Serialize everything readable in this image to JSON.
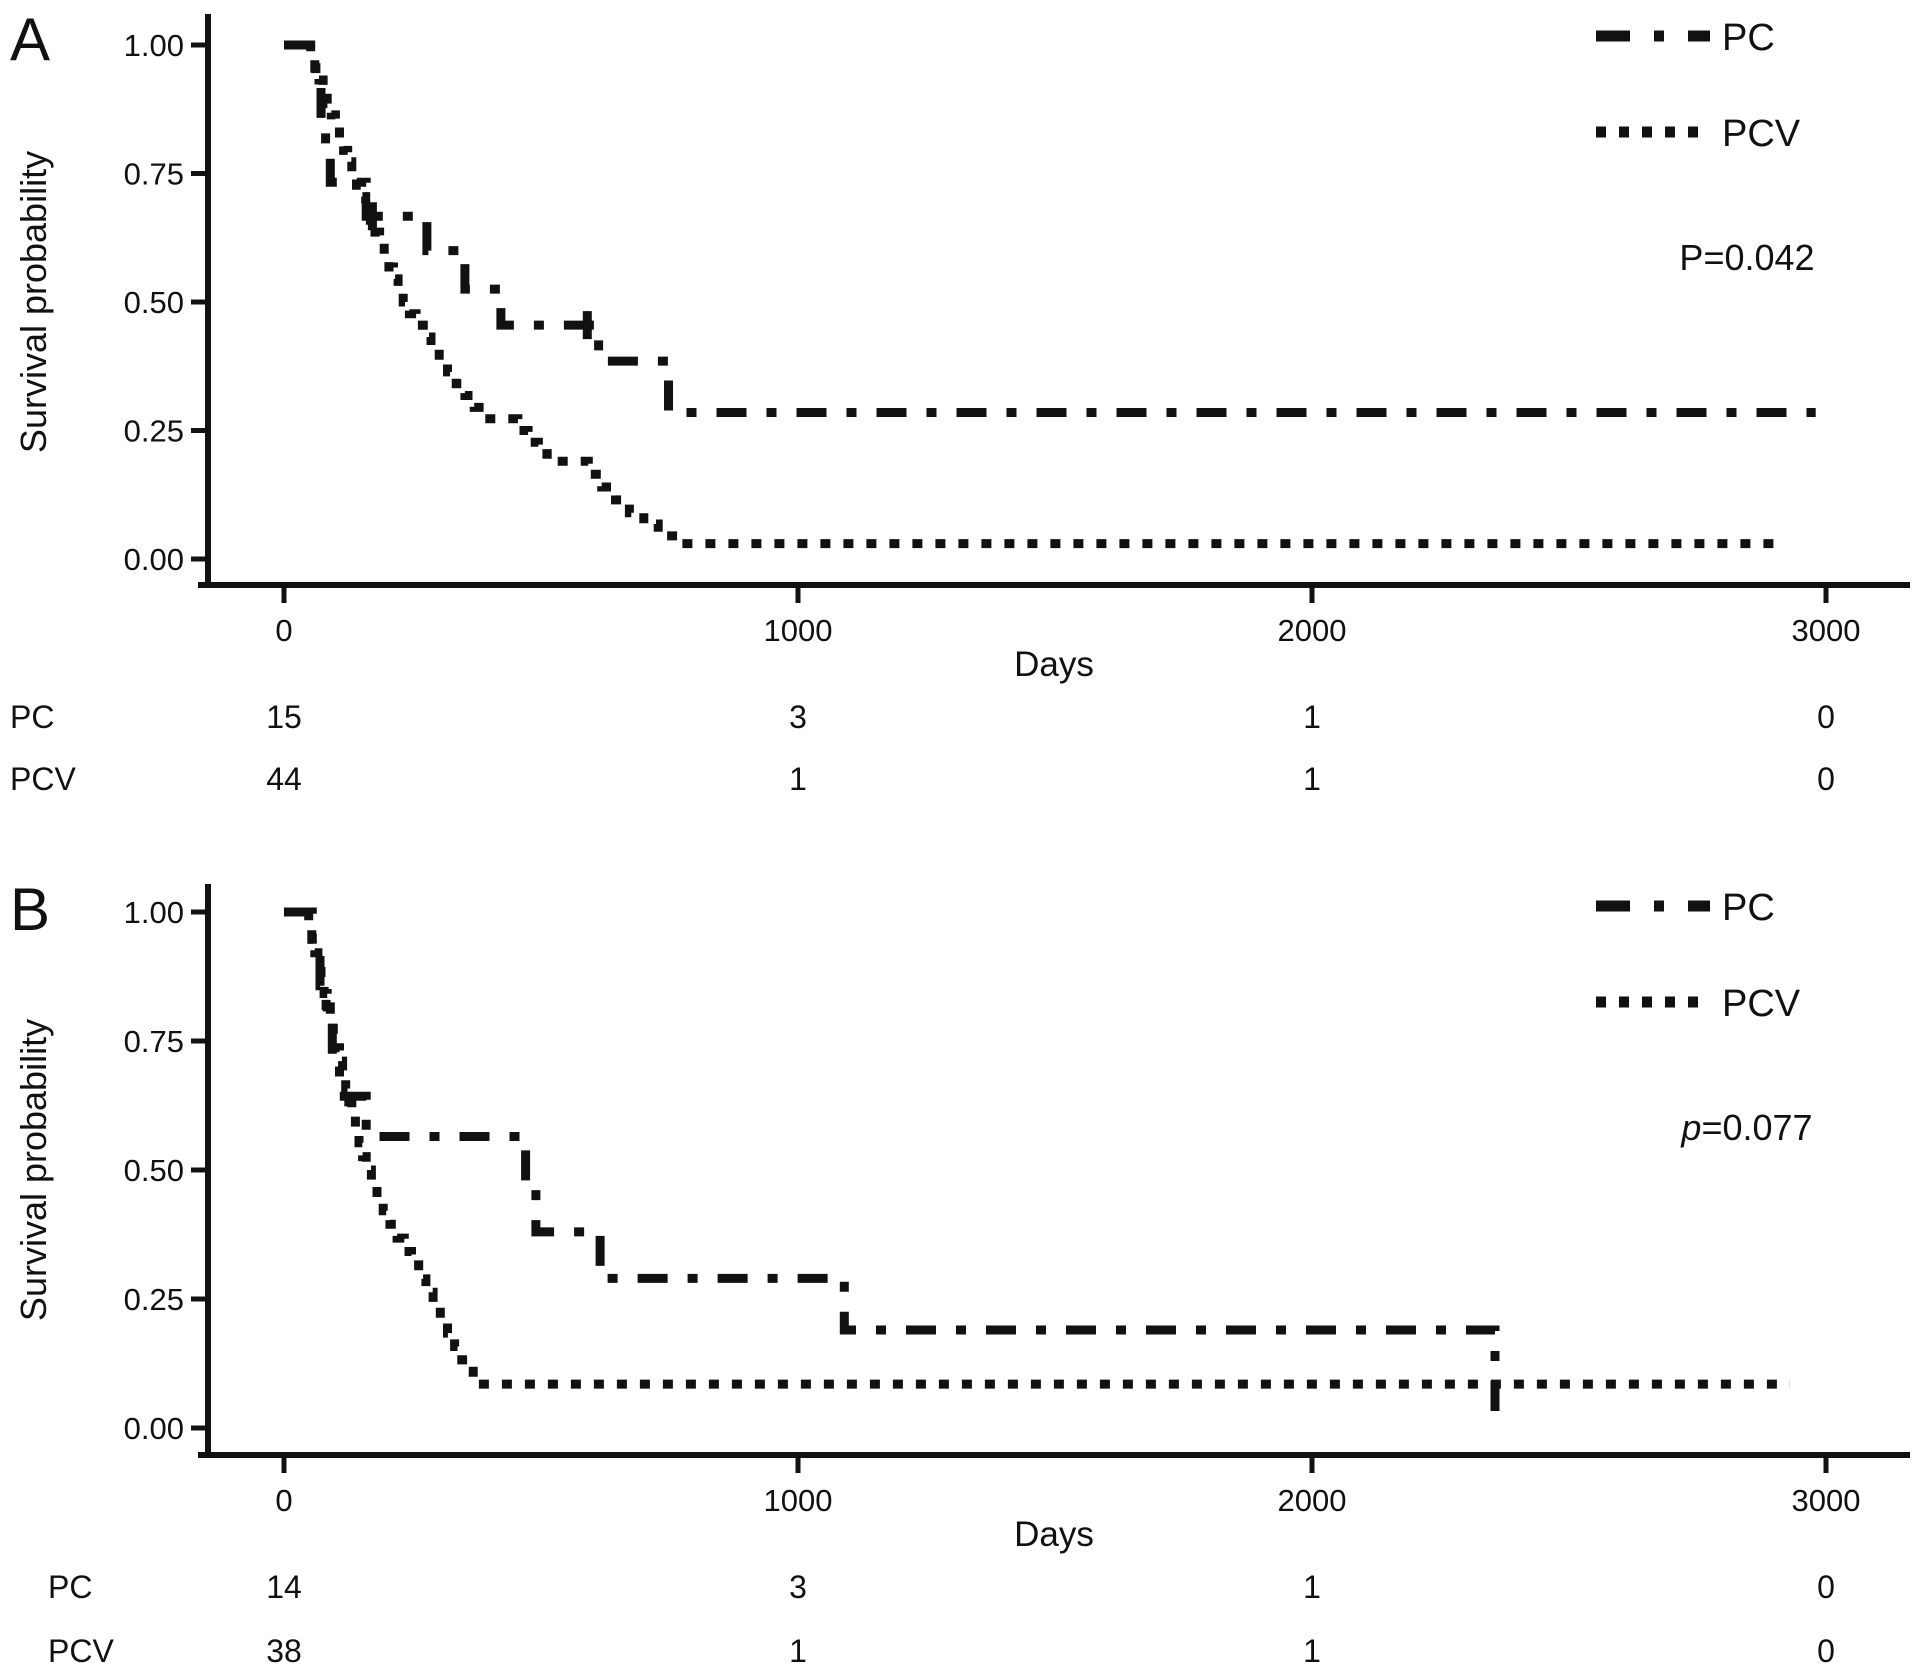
{
  "figure_type": "kaplan-meier-survival",
  "chart_data": [
    {
      "id": "a",
      "panel_label": "A",
      "type": "line",
      "subtype": "step-survival",
      "xlabel": "Days",
      "ylabel": "Survival probability",
      "xlim": [
        0,
        3000
      ],
      "ylim": [
        0.0,
        1.0
      ],
      "grid": false,
      "x_ticks": [
        0,
        1000,
        2000,
        3000
      ],
      "x_tick_labels": [
        "0",
        "1000",
        "2000",
        "3000"
      ],
      "y_ticks": [
        1.0,
        0.75,
        0.5,
        0.25,
        0.0
      ],
      "y_tick_labels": [
        "1.00",
        "0.75",
        "0.50",
        "0.25",
        "0.00"
      ],
      "legend_position": "top-right",
      "annotation": {
        "p_label": "P",
        "p_rest": "=0.042"
      },
      "series": [
        {
          "name": "PC",
          "line_style": "dash-dot",
          "color": "#111111",
          "steps": [
            [
              0,
              1
            ],
            [
              62,
              1
            ],
            [
              62,
              0.933
            ],
            [
              72,
              0.933
            ],
            [
              72,
              0.867
            ],
            [
              81,
              0.867
            ],
            [
              81,
              0.8
            ],
            [
              90,
              0.8
            ],
            [
              90,
              0.733
            ],
            [
              160,
              0.733
            ],
            [
              160,
              0.667
            ],
            [
              278,
              0.667
            ],
            [
              278,
              0.6
            ],
            [
              352,
              0.6
            ],
            [
              352,
              0.525
            ],
            [
              422,
              0.525
            ],
            [
              422,
              0.455
            ],
            [
              612,
              0.455
            ],
            [
              612,
              0.385
            ],
            [
              748,
              0.385
            ],
            [
              748,
              0.285
            ],
            [
              2980,
              0.285
            ]
          ],
          "censor_marks": [
            [
              172,
              0.667
            ],
            [
              590,
              0.455
            ]
          ]
        },
        {
          "name": "PCV",
          "line_style": "dotted",
          "color": "#111111",
          "steps": [
            [
              0,
              1
            ],
            [
              52,
              1
            ],
            [
              52,
              0.977
            ],
            [
              60,
              0.977
            ],
            [
              60,
              0.955
            ],
            [
              68,
              0.955
            ],
            [
              68,
              0.932
            ],
            [
              76,
              0.932
            ],
            [
              76,
              0.909
            ],
            [
              84,
              0.909
            ],
            [
              84,
              0.886
            ],
            [
              92,
              0.886
            ],
            [
              92,
              0.864
            ],
            [
              100,
              0.864
            ],
            [
              100,
              0.841
            ],
            [
              108,
              0.841
            ],
            [
              108,
              0.818
            ],
            [
              116,
              0.818
            ],
            [
              116,
              0.795
            ],
            [
              124,
              0.795
            ],
            [
              124,
              0.773
            ],
            [
              132,
              0.773
            ],
            [
              132,
              0.75
            ],
            [
              141,
              0.75
            ],
            [
              141,
              0.727
            ],
            [
              150,
              0.727
            ],
            [
              150,
              0.705
            ],
            [
              159,
              0.705
            ],
            [
              159,
              0.682
            ],
            [
              168,
              0.682
            ],
            [
              168,
              0.659
            ],
            [
              177,
              0.659
            ],
            [
              177,
              0.636
            ],
            [
              186,
              0.636
            ],
            [
              186,
              0.614
            ],
            [
              195,
              0.614
            ],
            [
              195,
              0.591
            ],
            [
              204,
              0.591
            ],
            [
              204,
              0.568
            ],
            [
              213,
              0.568
            ],
            [
              213,
              0.545
            ],
            [
              222,
              0.545
            ],
            [
              222,
              0.523
            ],
            [
              232,
              0.523
            ],
            [
              232,
              0.5
            ],
            [
              244,
              0.5
            ],
            [
              244,
              0.477
            ],
            [
              257,
              0.477
            ],
            [
              257,
              0.455
            ],
            [
              271,
              0.455
            ],
            [
              271,
              0.432
            ],
            [
              286,
              0.432
            ],
            [
              286,
              0.409
            ],
            [
              302,
              0.409
            ],
            [
              302,
              0.386
            ],
            [
              318,
              0.386
            ],
            [
              318,
              0.364
            ],
            [
              335,
              0.364
            ],
            [
              335,
              0.341
            ],
            [
              352,
              0.341
            ],
            [
              352,
              0.318
            ],
            [
              370,
              0.318
            ],
            [
              370,
              0.295
            ],
            [
              390,
              0.295
            ],
            [
              390,
              0.273
            ],
            [
              455,
              0.273
            ],
            [
              455,
              0.25
            ],
            [
              475,
              0.25
            ],
            [
              475,
              0.227
            ],
            [
              495,
              0.227
            ],
            [
              495,
              0.205
            ],
            [
              512,
              0.205
            ],
            [
              512,
              0.19
            ],
            [
              592,
              0.19
            ],
            [
              592,
              0.165
            ],
            [
              618,
              0.165
            ],
            [
              618,
              0.14
            ],
            [
              645,
              0.14
            ],
            [
              645,
              0.115
            ],
            [
              672,
              0.115
            ],
            [
              672,
              0.09
            ],
            [
              700,
              0.09
            ],
            [
              700,
              0.068
            ],
            [
              728,
              0.068
            ],
            [
              728,
              0.045
            ],
            [
              756,
              0.045
            ],
            [
              756,
              0.03
            ],
            [
              2920,
              0.03
            ]
          ],
          "censor_marks": []
        }
      ],
      "risk_table": {
        "rows": [
          {
            "label": "PC",
            "counts": [
              "15",
              "3",
              "1",
              "0"
            ]
          },
          {
            "label": "PCV",
            "counts": [
              "44",
              "1",
              "1",
              "0"
            ]
          }
        ]
      }
    },
    {
      "id": "b",
      "panel_label": "B",
      "type": "line",
      "subtype": "step-survival",
      "xlabel": "Days",
      "ylabel": "Survival probability",
      "xlim": [
        0,
        3000
      ],
      "ylim": [
        0.0,
        1.0
      ],
      "grid": false,
      "x_ticks": [
        0,
        1000,
        2000,
        3000
      ],
      "x_tick_labels": [
        "0",
        "1000",
        "2000",
        "3000"
      ],
      "y_ticks": [
        1.0,
        0.75,
        0.5,
        0.25,
        0.0
      ],
      "y_tick_labels": [
        "1.00",
        "0.75",
        "0.50",
        "0.25",
        "0.00"
      ],
      "legend_position": "top-right",
      "annotation": {
        "p_label": "p",
        "p_rest": "=0.077"
      },
      "series": [
        {
          "name": "PC",
          "line_style": "dash-dot",
          "color": "#111111",
          "steps": [
            [
              0,
              1
            ],
            [
              55,
              1
            ],
            [
              55,
              0.929
            ],
            [
              70,
              0.929
            ],
            [
              70,
              0.857
            ],
            [
              82,
              0.857
            ],
            [
              82,
              0.786
            ],
            [
              94,
              0.786
            ],
            [
              94,
              0.714
            ],
            [
              108,
              0.714
            ],
            [
              108,
              0.643
            ],
            [
              160,
              0.643
            ],
            [
              160,
              0.565
            ],
            [
              470,
              0.565
            ],
            [
              470,
              0.47
            ],
            [
              490,
              0.47
            ],
            [
              490,
              0.38
            ],
            [
              615,
              0.38
            ],
            [
              615,
              0.29
            ],
            [
              1090,
              0.29
            ],
            [
              1090,
              0.19
            ],
            [
              2356,
              0.19
            ],
            [
              2356,
              0.0
            ]
          ],
          "censor_marks": []
        },
        {
          "name": "PCV",
          "line_style": "dotted",
          "color": "#111111",
          "steps": [
            [
              0,
              1
            ],
            [
              48,
              1
            ],
            [
              48,
              0.974
            ],
            [
              54,
              0.974
            ],
            [
              54,
              0.947
            ],
            [
              60,
              0.947
            ],
            [
              60,
              0.921
            ],
            [
              66,
              0.921
            ],
            [
              66,
              0.895
            ],
            [
              72,
              0.895
            ],
            [
              72,
              0.868
            ],
            [
              78,
              0.868
            ],
            [
              78,
              0.842
            ],
            [
              84,
              0.842
            ],
            [
              84,
              0.816
            ],
            [
              90,
              0.816
            ],
            [
              90,
              0.789
            ],
            [
              96,
              0.789
            ],
            [
              96,
              0.763
            ],
            [
              102,
              0.763
            ],
            [
              102,
              0.737
            ],
            [
              108,
              0.737
            ],
            [
              108,
              0.711
            ],
            [
              114,
              0.711
            ],
            [
              114,
              0.684
            ],
            [
              120,
              0.684
            ],
            [
              120,
              0.658
            ],
            [
              126,
              0.658
            ],
            [
              126,
              0.632
            ],
            [
              132,
              0.632
            ],
            [
              132,
              0.605
            ],
            [
              139,
              0.605
            ],
            [
              139,
              0.579
            ],
            [
              146,
              0.579
            ],
            [
              146,
              0.553
            ],
            [
              153,
              0.553
            ],
            [
              153,
              0.526
            ],
            [
              160,
              0.526
            ],
            [
              160,
              0.5
            ],
            [
              170,
              0.5
            ],
            [
              170,
              0.474
            ],
            [
              181,
              0.474
            ],
            [
              181,
              0.447
            ],
            [
              193,
              0.447
            ],
            [
              193,
              0.421
            ],
            [
              206,
              0.421
            ],
            [
              206,
              0.395
            ],
            [
              220,
              0.395
            ],
            [
              220,
              0.368
            ],
            [
              234,
              0.368
            ],
            [
              234,
              0.342
            ],
            [
              248,
              0.342
            ],
            [
              248,
              0.316
            ],
            [
              262,
              0.316
            ],
            [
              262,
              0.289
            ],
            [
              276,
              0.289
            ],
            [
              276,
              0.263
            ],
            [
              290,
              0.263
            ],
            [
              290,
              0.237
            ],
            [
              304,
              0.237
            ],
            [
              304,
              0.211
            ],
            [
              318,
              0.211
            ],
            [
              318,
              0.184
            ],
            [
              332,
              0.184
            ],
            [
              332,
              0.158
            ],
            [
              346,
              0.158
            ],
            [
              346,
              0.132
            ],
            [
              358,
              0.132
            ],
            [
              358,
              0.11
            ],
            [
              368,
              0.11
            ],
            [
              368,
              0.085
            ],
            [
              2930,
              0.085
            ]
          ],
          "censor_marks": []
        }
      ],
      "risk_table": {
        "rows": [
          {
            "label": "PC",
            "counts": [
              "14",
              "3",
              "1",
              "0"
            ]
          },
          {
            "label": "PCV",
            "counts": [
              "38",
              "1",
              "1",
              "0"
            ]
          }
        ]
      }
    }
  ]
}
